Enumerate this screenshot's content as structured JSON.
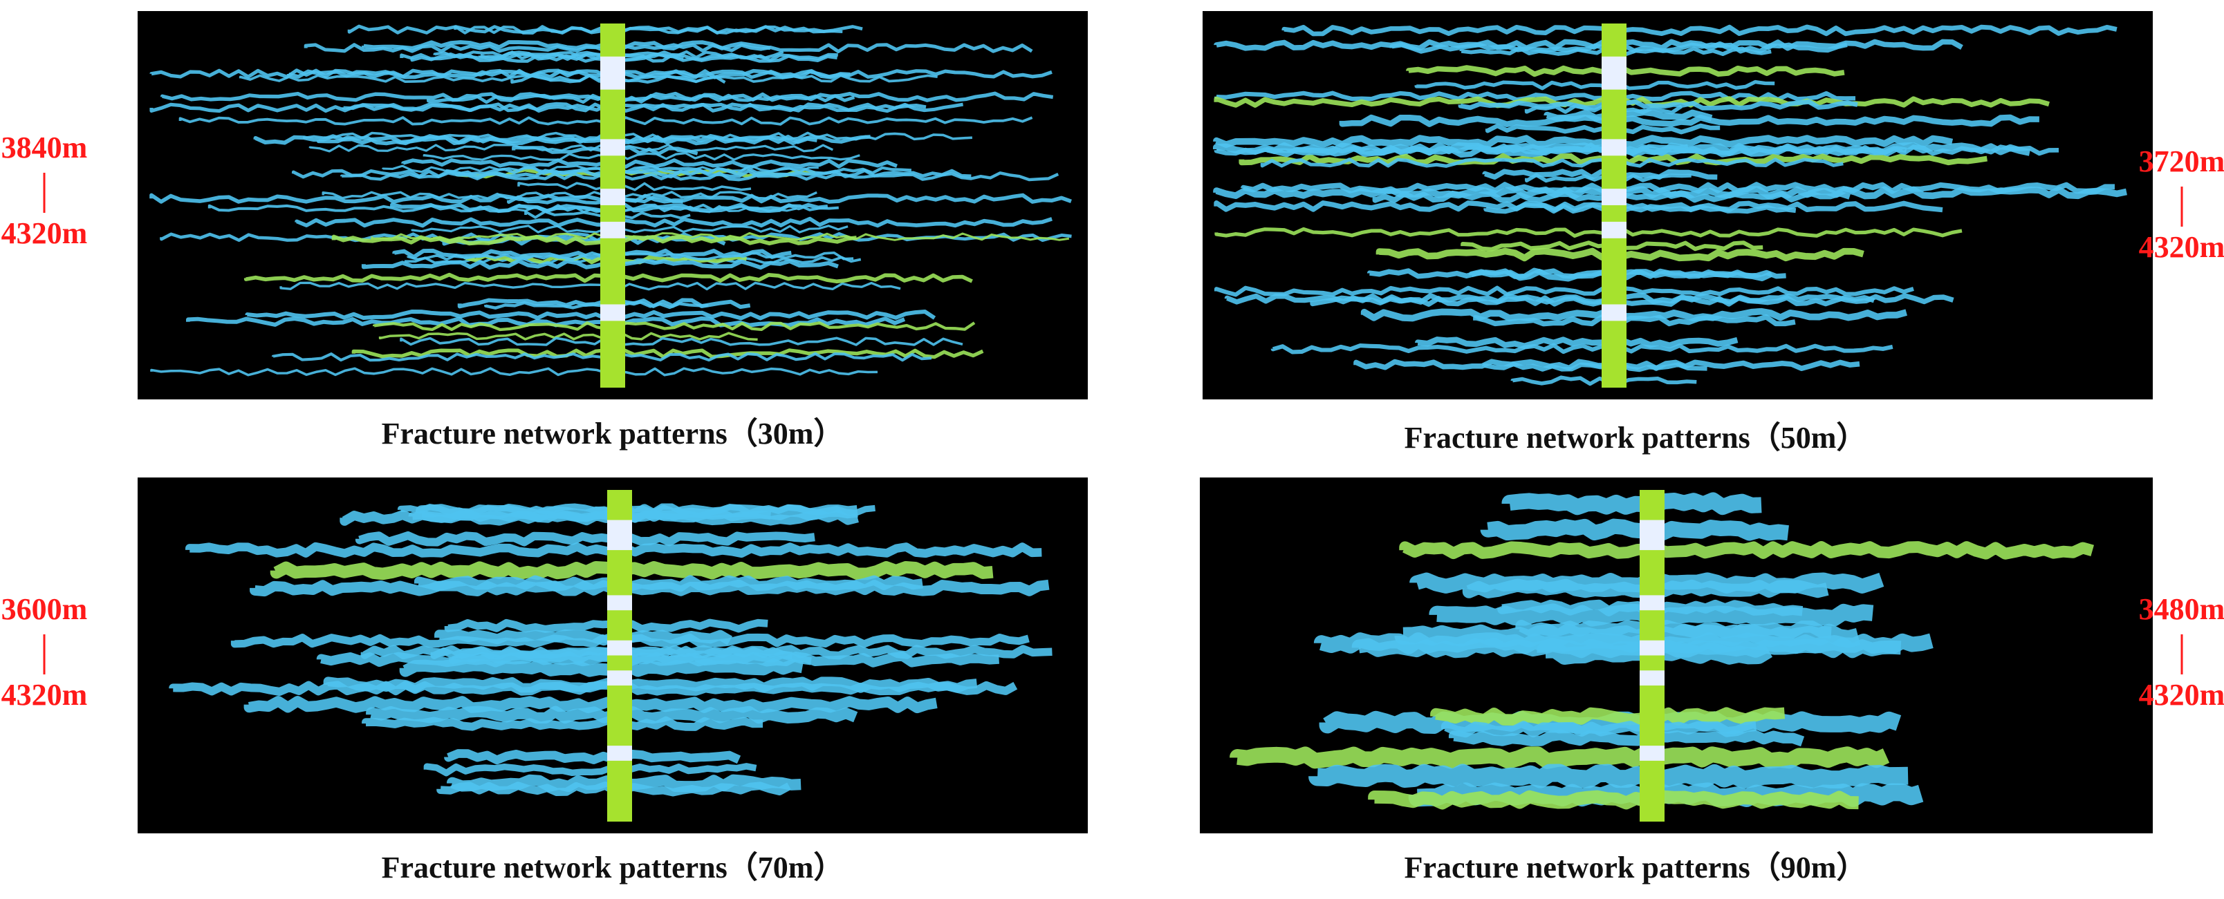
{
  "panels": [
    {
      "caption": "Fracture network patterns（30m）",
      "depth_top": "3840m",
      "depth_bottom": "4320m"
    },
    {
      "caption": "Fracture network patterns（50m）",
      "depth_top": "3720m",
      "depth_bottom": "4320m"
    },
    {
      "caption": "Fracture network patterns（70m）",
      "depth_top": "3600m",
      "depth_bottom": "4320m"
    },
    {
      "caption": "Fracture network patterns（90m）",
      "depth_top": "3480m",
      "depth_bottom": "4320m"
    }
  ]
}
